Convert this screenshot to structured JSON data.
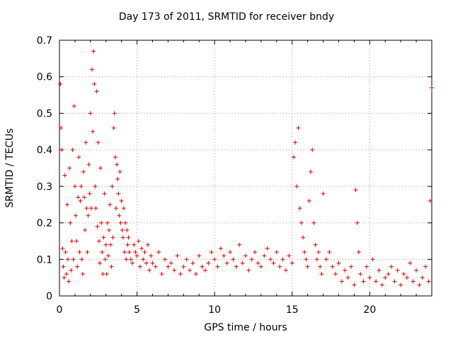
{
  "chart_data": {
    "type": "scatter",
    "title": "Day 173 of 2011, SRMTID for receiver bndy",
    "xlabel": "GPS time / hours",
    "ylabel": "SRMTID / TECUs",
    "xlim": [
      0,
      24
    ],
    "ylim": [
      0,
      0.7
    ],
    "xticks": [
      0,
      5,
      10,
      15,
      20
    ],
    "yticks": [
      0,
      0.1,
      0.2,
      0.3,
      0.4,
      0.5,
      0.6,
      0.7
    ],
    "grid": true,
    "marker": "+",
    "marker_color": "#e00000",
    "series": [
      {
        "name": "SRMTID",
        "x": [
          0.05,
          0.1,
          0.15,
          0.2,
          0.25,
          0.3,
          0.35,
          0.4,
          0.45,
          0.5,
          0.55,
          0.6,
          0.65,
          0.7,
          0.75,
          0.8,
          0.85,
          0.9,
          0.95,
          1.0,
          1.05,
          1.1,
          1.15,
          1.2,
          1.25,
          1.3,
          1.35,
          1.4,
          1.45,
          1.5,
          1.55,
          1.6,
          1.65,
          1.7,
          1.75,
          1.8,
          1.85,
          1.9,
          1.95,
          2.0,
          2.05,
          2.1,
          2.15,
          2.2,
          2.25,
          2.3,
          2.35,
          2.4,
          2.45,
          2.5,
          2.55,
          2.6,
          2.65,
          2.7,
          2.75,
          2.8,
          2.85,
          2.9,
          2.95,
          3.0,
          3.05,
          3.1,
          3.15,
          3.2,
          3.25,
          3.3,
          3.35,
          3.4,
          3.45,
          3.5,
          3.55,
          3.6,
          3.65,
          3.7,
          3.75,
          3.8,
          3.85,
          3.9,
          3.95,
          4.0,
          4.05,
          4.1,
          4.15,
          4.2,
          4.25,
          4.3,
          4.35,
          4.4,
          4.45,
          4.5,
          4.6,
          4.7,
          4.8,
          4.9,
          5.0,
          5.1,
          5.2,
          5.3,
          5.4,
          5.5,
          5.6,
          5.7,
          5.8,
          5.9,
          6.0,
          6.2,
          6.4,
          6.6,
          6.8,
          7.0,
          7.2,
          7.4,
          7.6,
          7.8,
          8.0,
          8.2,
          8.4,
          8.6,
          8.8,
          9.0,
          9.2,
          9.4,
          9.6,
          9.8,
          10.0,
          10.2,
          10.4,
          10.6,
          10.8,
          11.0,
          11.2,
          11.4,
          11.6,
          11.8,
          12.0,
          12.2,
          12.4,
          12.6,
          12.8,
          13.0,
          13.2,
          13.4,
          13.6,
          13.8,
          14.0,
          14.2,
          14.4,
          14.6,
          14.8,
          15.0,
          15.1,
          15.2,
          15.3,
          15.4,
          15.5,
          15.6,
          15.7,
          15.8,
          15.9,
          16.0,
          16.1,
          16.2,
          16.3,
          16.4,
          16.5,
          16.6,
          16.7,
          16.8,
          16.9,
          17.0,
          17.2,
          17.4,
          17.6,
          17.8,
          18.0,
          18.2,
          18.4,
          18.6,
          18.8,
          19.0,
          19.1,
          19.2,
          19.3,
          19.4,
          19.6,
          19.8,
          20.0,
          20.2,
          20.4,
          20.6,
          20.8,
          21.0,
          21.2,
          21.4,
          21.6,
          21.8,
          22.0,
          22.2,
          22.4,
          22.6,
          22.8,
          23.0,
          23.2,
          23.4,
          23.6,
          23.8,
          23.9,
          24.0
        ],
        "y": [
          0.58,
          0.46,
          0.4,
          0.13,
          0.08,
          0.05,
          0.33,
          0.12,
          0.06,
          0.25,
          0.1,
          0.04,
          0.35,
          0.2,
          0.07,
          0.15,
          0.4,
          0.1,
          0.52,
          0.3,
          0.22,
          0.15,
          0.08,
          0.27,
          0.38,
          0.12,
          0.26,
          0.3,
          0.1,
          0.06,
          0.34,
          0.27,
          0.18,
          0.42,
          0.24,
          0.12,
          0.22,
          0.36,
          0.28,
          0.5,
          0.24,
          0.62,
          0.45,
          0.67,
          0.58,
          0.3,
          0.24,
          0.56,
          0.19,
          0.42,
          0.15,
          0.09,
          0.35,
          0.2,
          0.12,
          0.06,
          0.16,
          0.28,
          0.1,
          0.14,
          0.06,
          0.2,
          0.11,
          0.18,
          0.25,
          0.14,
          0.08,
          0.3,
          0.16,
          0.46,
          0.5,
          0.38,
          0.24,
          0.36,
          0.32,
          0.28,
          0.22,
          0.34,
          0.2,
          0.26,
          0.18,
          0.16,
          0.24,
          0.12,
          0.2,
          0.1,
          0.18,
          0.14,
          0.16,
          0.12,
          0.1,
          0.09,
          0.14,
          0.12,
          0.11,
          0.15,
          0.08,
          0.13,
          0.1,
          0.12,
          0.09,
          0.14,
          0.07,
          0.11,
          0.09,
          0.08,
          0.12,
          0.06,
          0.1,
          0.08,
          0.09,
          0.07,
          0.11,
          0.06,
          0.08,
          0.1,
          0.07,
          0.09,
          0.06,
          0.11,
          0.08,
          0.07,
          0.09,
          0.12,
          0.1,
          0.08,
          0.13,
          0.11,
          0.09,
          0.12,
          0.1,
          0.08,
          0.14,
          0.09,
          0.11,
          0.07,
          0.1,
          0.12,
          0.09,
          0.08,
          0.11,
          0.13,
          0.1,
          0.09,
          0.12,
          0.08,
          0.1,
          0.07,
          0.11,
          0.09,
          0.38,
          0.42,
          0.3,
          0.46,
          0.24,
          0.2,
          0.16,
          0.12,
          0.1,
          0.08,
          0.26,
          0.34,
          0.4,
          0.2,
          0.14,
          0.1,
          0.12,
          0.08,
          0.06,
          0.28,
          0.1,
          0.12,
          0.08,
          0.06,
          0.09,
          0.04,
          0.07,
          0.05,
          0.08,
          0.03,
          0.29,
          0.2,
          0.12,
          0.06,
          0.04,
          0.08,
          0.05,
          0.1,
          0.04,
          0.07,
          0.03,
          0.05,
          0.06,
          0.08,
          0.04,
          0.07,
          0.03,
          0.06,
          0.05,
          0.09,
          0.04,
          0.07,
          0.03,
          0.05,
          0.08,
          0.04,
          0.26,
          0.57
        ]
      }
    ]
  }
}
